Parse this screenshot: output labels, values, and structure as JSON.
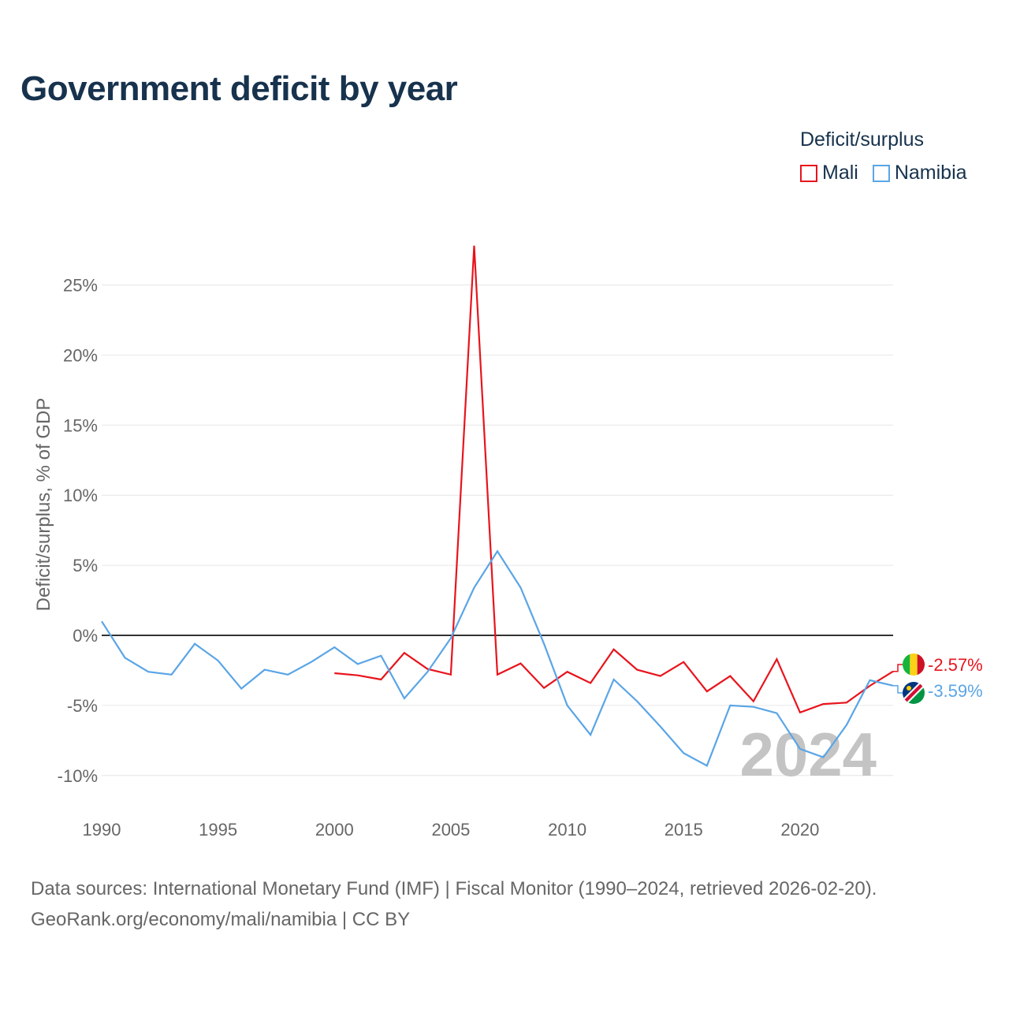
{
  "title": "Government deficit by year",
  "legend": {
    "title": "Deficit/surplus",
    "items": [
      {
        "label": "Mali",
        "color": "#e8141c"
      },
      {
        "label": "Namibia",
        "color": "#5aa5e6"
      }
    ]
  },
  "source": {
    "line1": "Data sources: International Monetary Fund (IMF) | Fiscal Monitor (1990–2024, retrieved 2026-02-20).",
    "line2": "GeoRank.org/economy/mali/namibia | CC BY"
  },
  "chart_data": {
    "type": "line",
    "title": "Government deficit by year",
    "xlabel": "",
    "ylabel": "Deficit/surplus, % of GDP",
    "xlim": [
      1990,
      2024
    ],
    "ylim": [
      -12,
      28
    ],
    "x_ticks": [
      1990,
      1995,
      2000,
      2005,
      2010,
      2015,
      2020
    ],
    "x_tick_labels": [
      "1990",
      "1995",
      "2000",
      "2005",
      "2010",
      "2015",
      "2020"
    ],
    "y_ticks": [
      -10,
      -5,
      0,
      5,
      10,
      15,
      20,
      25
    ],
    "y_tick_labels": [
      "-10%",
      "-5%",
      "0%",
      "5%",
      "10%",
      "15%",
      "20%",
      "25%"
    ],
    "year_watermark": "2024",
    "series": [
      {
        "name": "Mali",
        "color": "#e8141c",
        "end_label": "-2.57%",
        "x": [
          2000,
          2001,
          2002,
          2003,
          2004,
          2005,
          2006,
          2007,
          2008,
          2009,
          2010,
          2011,
          2012,
          2013,
          2014,
          2015,
          2016,
          2017,
          2018,
          2019,
          2020,
          2021,
          2022,
          2023,
          2024
        ],
        "values": [
          -2.7,
          -2.85,
          -3.15,
          -1.25,
          -2.4,
          -2.8,
          27.8,
          -2.8,
          -2.0,
          -3.75,
          -2.6,
          -3.4,
          -1.0,
          -2.45,
          -2.9,
          -1.9,
          -4.0,
          -2.9,
          -4.7,
          -1.7,
          -5.5,
          -4.9,
          -4.8,
          -3.6,
          -2.57
        ]
      },
      {
        "name": "Namibia",
        "color": "#5aa5e6",
        "end_label": "-3.59%",
        "x": [
          1990,
          1991,
          1992,
          1993,
          1994,
          1995,
          1996,
          1997,
          1998,
          1999,
          2000,
          2001,
          2002,
          2003,
          2004,
          2005,
          2006,
          2007,
          2008,
          2009,
          2010,
          2011,
          2012,
          2013,
          2014,
          2015,
          2016,
          2017,
          2018,
          2019,
          2020,
          2021,
          2022,
          2023,
          2024
        ],
        "values": [
          1.0,
          -1.6,
          -2.6,
          -2.8,
          -0.6,
          -1.8,
          -3.8,
          -2.45,
          -2.8,
          -1.9,
          -0.85,
          -2.05,
          -1.45,
          -4.5,
          -2.6,
          -0.2,
          3.4,
          6.0,
          3.4,
          -0.6,
          -5.0,
          -7.1,
          -3.15,
          -4.7,
          -6.5,
          -8.4,
          -9.3,
          -5.0,
          -5.1,
          -5.55,
          -8.1,
          -8.7,
          -6.4,
          -3.2,
          -3.59
        ]
      }
    ]
  }
}
